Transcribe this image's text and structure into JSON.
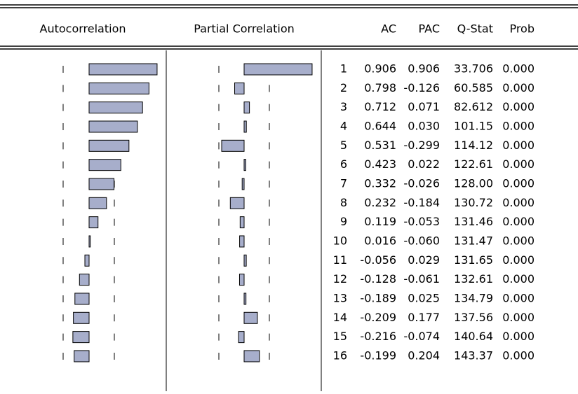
{
  "table": {
    "headers": [
      "Autocorrelation",
      "Partial Correlation",
      "AC",
      "PAC",
      "Q-Stat",
      "Prob"
    ],
    "rows": [
      [
        "1",
        "0.906",
        "0.906",
        "33.706",
        "0.000"
      ],
      [
        "2",
        "0.798",
        "-0.126",
        "60.585",
        "0.000"
      ],
      [
        "3",
        "0.712",
        "0.071",
        "82.612",
        "0.000"
      ],
      [
        "4",
        "0.644",
        "0.030",
        "101.15",
        "0.000"
      ],
      [
        "5",
        "0.531",
        "-0.299",
        "114.12",
        "0.000"
      ],
      [
        "6",
        "0.423",
        "0.022",
        "122.61",
        "0.000"
      ],
      [
        "7",
        "0.332",
        "-0.026",
        "128.00",
        "0.000"
      ],
      [
        "8",
        "0.232",
        "-0.184",
        "130.72",
        "0.000"
      ],
      [
        "9",
        "0.119",
        "-0.053",
        "131.46",
        "0.000"
      ],
      [
        "10",
        "0.016",
        "-0.060",
        "131.47",
        "0.000"
      ],
      [
        "11",
        "-0.056",
        "0.029",
        "131.65",
        "0.000"
      ],
      [
        "12",
        "-0.128",
        "-0.061",
        "132.61",
        "0.000"
      ],
      [
        "13",
        "-0.189",
        "0.025",
        "134.79",
        "0.000"
      ],
      [
        "14",
        "-0.209",
        "0.177",
        "137.56",
        "0.000"
      ],
      [
        "15",
        "-0.216",
        "-0.074",
        "140.64",
        "0.000"
      ],
      [
        "16",
        "-0.199",
        "0.204",
        "143.37",
        "0.000"
      ]
    ]
  }
}
